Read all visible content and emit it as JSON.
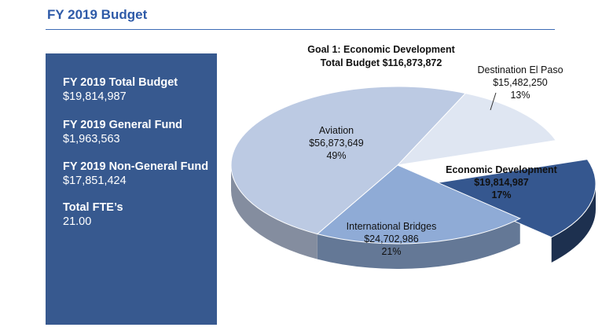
{
  "header": {
    "title": "FY 2019 Budget"
  },
  "stats": [
    {
      "label": "FY 2019 Total Budget",
      "value": "$19,814,987"
    },
    {
      "label": "FY 2019 General Fund",
      "value": "$1,963,563"
    },
    {
      "label": "FY 2019 Non-General Fund",
      "value": "$17,851,424"
    },
    {
      "label": "Total FTE’s",
      "value": "21.00"
    }
  ],
  "chart_data": {
    "type": "pie",
    "title": "Goal 1: Economic Development",
    "subtitle": "Total Budget $116,873,872",
    "slices": [
      {
        "label": "Aviation",
        "value": 56873649,
        "value_text": "$56,873,649",
        "percent_text": "49%",
        "color": "#bccae3"
      },
      {
        "label": "Destination El Paso",
        "value": 15482250,
        "value_text": "$15,482,250",
        "percent_text": "13%",
        "color": "#dfe6f2"
      },
      {
        "label": "Economic Development",
        "value": 19814987,
        "value_text": "$19,814,987",
        "percent_text": "17%",
        "color": "#35578f",
        "exploded": true
      },
      {
        "label": "International Bridges",
        "value": 24702986,
        "value_text": "$24,702,986",
        "percent_text": "21%",
        "color": "#8fabd6"
      }
    ]
  },
  "colors": {
    "title": "#2e5aa8",
    "panel": "#37598f"
  }
}
